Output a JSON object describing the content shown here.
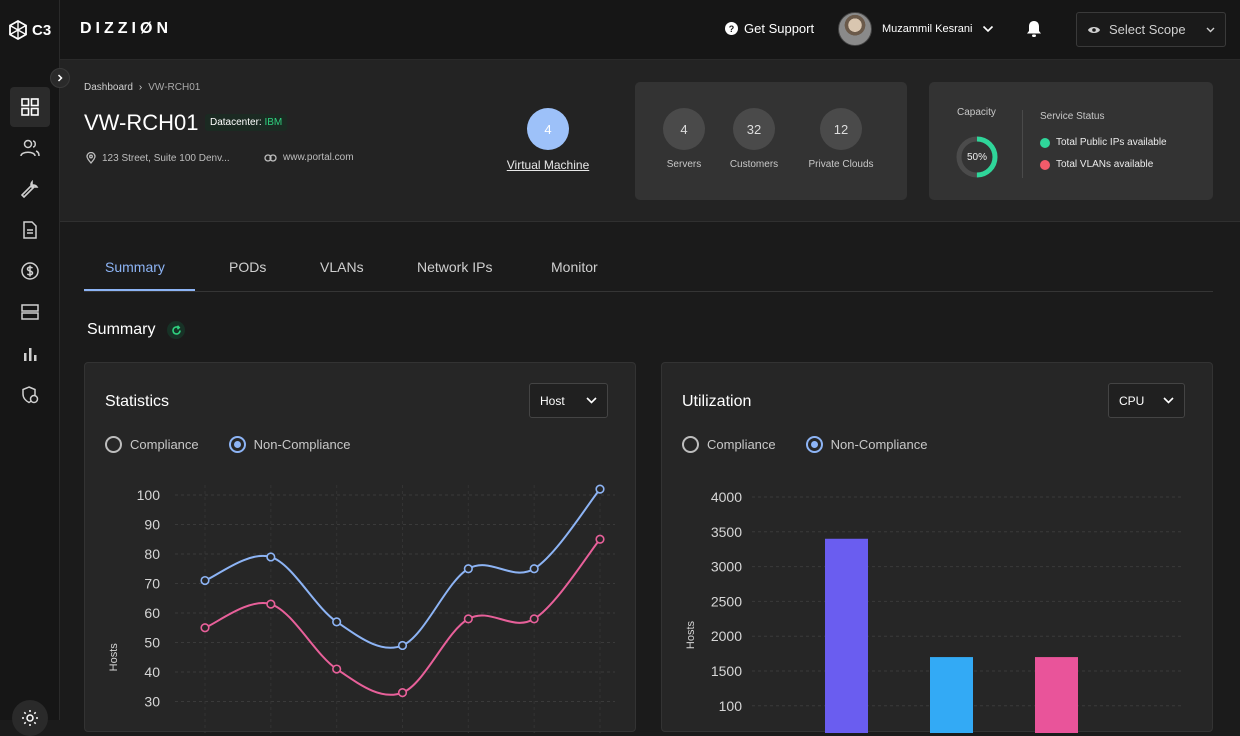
{
  "app": {
    "short_logo": "C3",
    "brand": "DIZZIØN"
  },
  "topbar": {
    "support_label": "Get Support",
    "user_name": "Muzammil Kesrani",
    "scope_placeholder": "Select Scope"
  },
  "breadcrumb": {
    "root": "Dashboard",
    "current": "VW-RCH01"
  },
  "resource": {
    "name": "VW-RCH01",
    "datacenter_label": "Datacenter:",
    "datacenter_value": "IBM",
    "address": "123 Street, Suite 100 Denv...",
    "website": "www.portal.com"
  },
  "vm": {
    "count": "4",
    "label": "Virtual Machine"
  },
  "stats": [
    {
      "value": "4",
      "label": "Servers"
    },
    {
      "value": "32",
      "label": "Customers"
    },
    {
      "value": "12",
      "label": "Private Clouds"
    }
  ],
  "capacity": {
    "title": "Capacity",
    "percent": 50,
    "percent_label": "50%"
  },
  "service_status": {
    "title": "Service Status",
    "items": [
      {
        "label": "Total Public IPs available",
        "color": "#2fd69a"
      },
      {
        "label": "Total VLANs available",
        "color": "#f15b6a"
      }
    ]
  },
  "tabs": [
    "Summary",
    "PODs",
    "VLANs",
    "Network IPs",
    "Monitor"
  ],
  "active_tab": "Summary",
  "summary": {
    "title": "Summary"
  },
  "statistics": {
    "title": "Statistics",
    "dropdown": "Host",
    "radios": {
      "compliance": "Compliance",
      "non_compliance": "Non-Compliance",
      "selected": "non_compliance"
    }
  },
  "utilization": {
    "title": "Utilization",
    "dropdown": "CPU",
    "radios": {
      "compliance": "Compliance",
      "non_compliance": "Non-Compliance",
      "selected": "non_compliance"
    }
  },
  "chart_data": [
    {
      "type": "line",
      "ylabel": "Hosts",
      "y_ticks": [
        100,
        90,
        80,
        70,
        60,
        50,
        40,
        30
      ],
      "ylim": [
        30,
        100
      ],
      "grid": true,
      "x": [
        1,
        2,
        3,
        4,
        5,
        6,
        7
      ],
      "series": [
        {
          "color": "#8db4f5",
          "values": [
            71,
            79,
            57,
            49,
            75,
            75,
            102
          ]
        },
        {
          "color": "#e8609a",
          "values": [
            55,
            63,
            41,
            33,
            58,
            58,
            85
          ]
        }
      ]
    },
    {
      "type": "bar",
      "ylabel": "Hosts",
      "y_ticks": [
        "4000",
        "3500",
        "3000",
        "2500",
        "2000",
        "1500",
        "100"
      ],
      "grid": true,
      "bars": [
        {
          "value": 3400,
          "color": "#6a5df0"
        },
        {
          "value": 1700,
          "color": "#33aaf5"
        },
        {
          "value": 1700,
          "color": "#e9549a"
        }
      ]
    }
  ]
}
